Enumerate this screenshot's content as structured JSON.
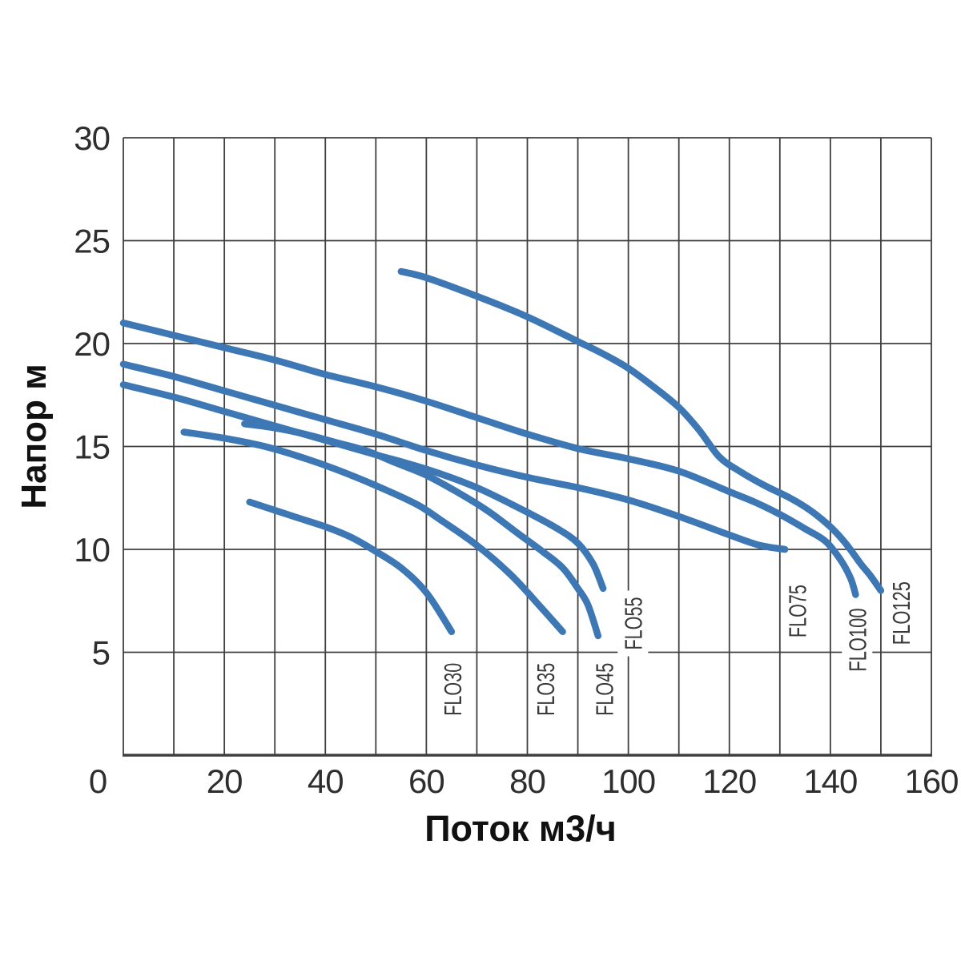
{
  "chart_data": {
    "type": "line",
    "title": "",
    "xlabel": "Поток м3/ч",
    "ylabel": "Напор м",
    "xlim": [
      0,
      160
    ],
    "ylim": [
      0,
      30
    ],
    "x_ticks": [
      0,
      20,
      40,
      60,
      80,
      100,
      120,
      140,
      160
    ],
    "y_ticks": [
      5,
      10,
      15,
      20,
      25,
      30
    ],
    "x_gridline_step": 10,
    "y_gridline_step": 5,
    "grid": "on",
    "legend_position": "rotated-labels-at-curve-ends",
    "colors": {
      "curve": "#3d78b5",
      "grid": "#3f3f3f",
      "text": "#2e2e2e",
      "background": "#ffffff"
    },
    "series": [
      {
        "name": "FLO30",
        "label_pos": [
          65.2,
          3.2
        ],
        "points": [
          [
            25,
            12.3
          ],
          [
            30,
            11.9
          ],
          [
            35,
            11.5
          ],
          [
            40,
            11.1
          ],
          [
            45,
            10.6
          ],
          [
            50,
            9.9
          ],
          [
            55,
            9.1
          ],
          [
            60,
            7.9
          ],
          [
            65,
            6.0
          ]
        ]
      },
      {
        "name": "FLO35",
        "label_pos": [
          83.6,
          3.2
        ],
        "points": [
          [
            12,
            15.7
          ],
          [
            20,
            15.4
          ],
          [
            28,
            15.0
          ],
          [
            35,
            14.5
          ],
          [
            42,
            13.9
          ],
          [
            50,
            13.1
          ],
          [
            58,
            12.2
          ],
          [
            63,
            11.4
          ],
          [
            70,
            10.2
          ],
          [
            77,
            8.7
          ],
          [
            83,
            7.1
          ],
          [
            87,
            6.0
          ]
        ]
      },
      {
        "name": "FLO45",
        "label_pos": [
          95.2,
          3.2
        ],
        "points": [
          [
            24,
            16.1
          ],
          [
            30,
            15.9
          ],
          [
            36,
            15.6
          ],
          [
            42,
            15.2
          ],
          [
            48,
            14.8
          ],
          [
            54,
            14.2
          ],
          [
            60,
            13.6
          ],
          [
            66,
            12.8
          ],
          [
            72,
            11.9
          ],
          [
            78,
            10.8
          ],
          [
            83,
            9.9
          ],
          [
            87,
            9.1
          ],
          [
            90,
            8.1
          ],
          [
            92,
            7.3
          ],
          [
            94,
            5.8
          ]
        ]
      },
      {
        "name": "FLO55",
        "label_pos": [
          100.9,
          6.4
        ],
        "points": [
          [
            0,
            18.0
          ],
          [
            10,
            17.4
          ],
          [
            20,
            16.7
          ],
          [
            30,
            16.0
          ],
          [
            40,
            15.3
          ],
          [
            50,
            14.6
          ],
          [
            60,
            13.9
          ],
          [
            70,
            13.0
          ],
          [
            80,
            11.8
          ],
          [
            86,
            11.0
          ],
          [
            90,
            10.3
          ],
          [
            93,
            9.3
          ],
          [
            95,
            8.1
          ]
        ]
      },
      {
        "name": "FLO75",
        "label_pos": [
          133.4,
          7.0
        ],
        "points": [
          [
            0,
            19.0
          ],
          [
            10,
            18.4
          ],
          [
            20,
            17.7
          ],
          [
            30,
            17.0
          ],
          [
            40,
            16.3
          ],
          [
            50,
            15.6
          ],
          [
            60,
            14.8
          ],
          [
            70,
            14.1
          ],
          [
            80,
            13.5
          ],
          [
            90,
            13.0
          ],
          [
            100,
            12.4
          ],
          [
            110,
            11.6
          ],
          [
            120,
            10.7
          ],
          [
            126,
            10.2
          ],
          [
            131,
            10.0
          ]
        ]
      },
      {
        "name": "FLO100",
        "label_pos": [
          145.3,
          5.6
        ],
        "points": [
          [
            0,
            21.0
          ],
          [
            10,
            20.4
          ],
          [
            20,
            19.8
          ],
          [
            30,
            19.2
          ],
          [
            40,
            18.5
          ],
          [
            50,
            17.9
          ],
          [
            60,
            17.2
          ],
          [
            70,
            16.4
          ],
          [
            80,
            15.6
          ],
          [
            90,
            14.9
          ],
          [
            100,
            14.4
          ],
          [
            110,
            13.8
          ],
          [
            120,
            12.8
          ],
          [
            125,
            12.3
          ],
          [
            130,
            11.7
          ],
          [
            135,
            11.0
          ],
          [
            139,
            10.4
          ],
          [
            142,
            9.5
          ],
          [
            144,
            8.6
          ],
          [
            145,
            7.8
          ]
        ]
      },
      {
        "name": "FLO125",
        "label_pos": [
          154.0,
          6.9
        ],
        "points": [
          [
            55,
            23.5
          ],
          [
            60,
            23.2
          ],
          [
            70,
            22.3
          ],
          [
            80,
            21.3
          ],
          [
            90,
            20.1
          ],
          [
            95,
            19.5
          ],
          [
            100,
            18.8
          ],
          [
            105,
            17.9
          ],
          [
            110,
            16.9
          ],
          [
            114,
            15.8
          ],
          [
            118,
            14.5
          ],
          [
            122,
            13.8
          ],
          [
            127,
            13.1
          ],
          [
            132,
            12.5
          ],
          [
            136,
            11.9
          ],
          [
            140,
            11.1
          ],
          [
            143,
            10.3
          ],
          [
            146,
            9.3
          ],
          [
            148,
            8.7
          ],
          [
            150,
            8.0
          ]
        ]
      }
    ]
  }
}
